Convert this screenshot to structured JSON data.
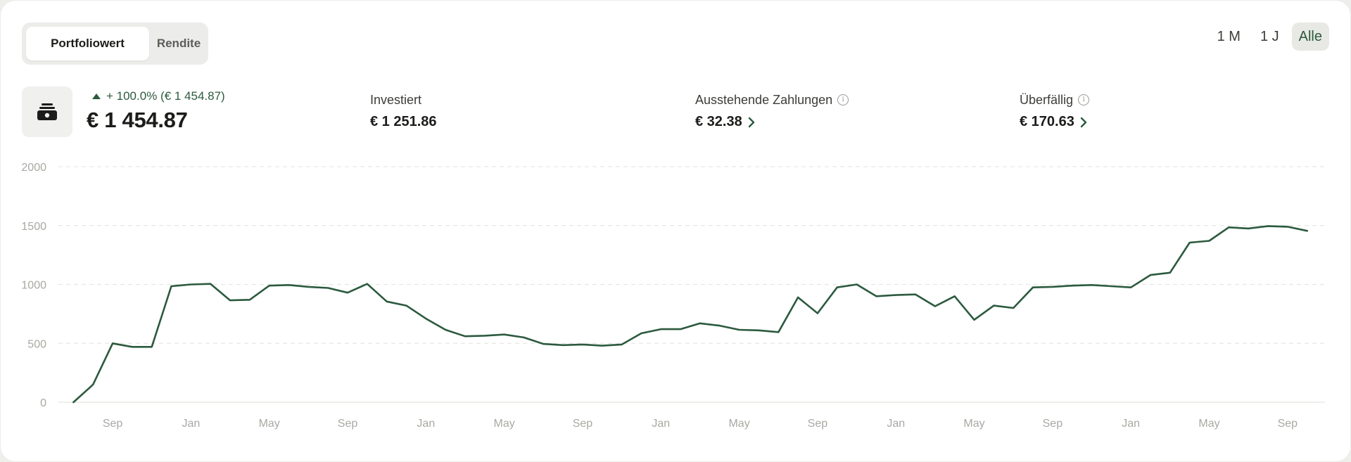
{
  "toggle": {
    "active_label": "Portfoliowert",
    "inactive_label": "Rendite"
  },
  "ranges": [
    "1 M",
    "1 J",
    "Alle"
  ],
  "active_range": "Alle",
  "portfolio": {
    "icon": "cash-stack-icon",
    "change": "+ 100.0% (€ 1 454.87)",
    "value": "€ 1 454.87"
  },
  "stats": {
    "invested": {
      "label": "Investiert",
      "value": "€ 1 251.86"
    },
    "outstanding": {
      "label": "Ausstehende Zahlungen",
      "value": "€ 32.38"
    },
    "overdue": {
      "label": "Überfällig",
      "value": "€ 170.63"
    }
  },
  "colors": {
    "accent": "#2b5a3e",
    "line": "#2c5a3f",
    "grid": "#e6e6e2",
    "axis_text": "#a8a8a3"
  },
  "chart_data": {
    "type": "line",
    "ylim": [
      0,
      2000
    ],
    "y_ticks": [
      0,
      500,
      1000,
      1500,
      2000
    ],
    "x_ticks": [
      {
        "label": "Sep",
        "x": 2
      },
      {
        "label": "Jan",
        "x": 6
      },
      {
        "label": "May",
        "x": 10
      },
      {
        "label": "Sep",
        "x": 14
      },
      {
        "label": "Jan",
        "x": 18
      },
      {
        "label": "May",
        "x": 22
      },
      {
        "label": "Sep",
        "x": 26
      },
      {
        "label": "Jan",
        "x": 30
      },
      {
        "label": "May",
        "x": 34
      },
      {
        "label": "Sep",
        "x": 38
      },
      {
        "label": "Jan",
        "x": 42
      },
      {
        "label": "May",
        "x": 46
      },
      {
        "label": "Sep",
        "x": 50
      },
      {
        "label": "Jan",
        "x": 54
      },
      {
        "label": "May",
        "x": 58
      },
      {
        "label": "Sep",
        "x": 62
      }
    ],
    "xlim": [
      -0.05,
      63.3
    ],
    "values": [
      0,
      150,
      500,
      470,
      470,
      985,
      1000,
      1005,
      865,
      870,
      990,
      995,
      980,
      970,
      930,
      1005,
      855,
      820,
      710,
      615,
      560,
      565,
      575,
      550,
      495,
      485,
      490,
      480,
      490,
      585,
      620,
      620,
      670,
      650,
      615,
      610,
      595,
      890,
      755,
      975,
      1000,
      900,
      910,
      915,
      815,
      900,
      700,
      820,
      800,
      975,
      980,
      990,
      995,
      985,
      975,
      1080,
      1100,
      1355,
      1370,
      1485,
      1475,
      1495,
      1490,
      1455
    ]
  }
}
